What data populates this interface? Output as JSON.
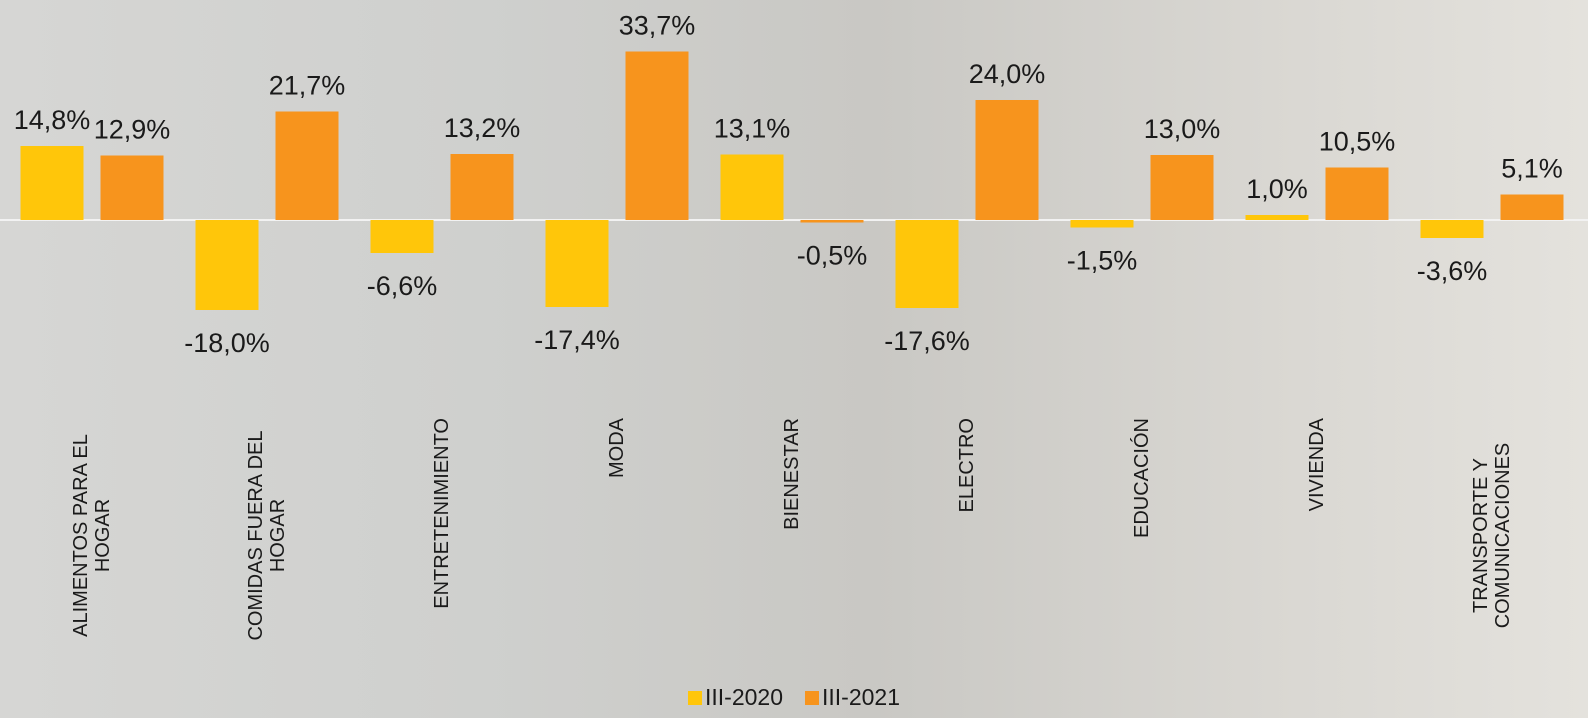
{
  "chart_data": {
    "type": "bar",
    "categories": [
      "ALIMENTOS PARA EL HOGAR",
      "COMIDAS FUERA DEL HOGAR",
      "ENTRETENIMIENTO",
      "MODA",
      "BIENESTAR",
      "ELECTRO",
      "EDUCACIÓN",
      "VIVIENDA",
      "TRANSPORTE Y COMUNICACIONES"
    ],
    "series": [
      {
        "name": "III-2020",
        "color": "#ffc60a",
        "values": [
          14.8,
          -18.0,
          -6.6,
          -17.4,
          13.1,
          -17.6,
          -1.5,
          1.0,
          -3.6
        ],
        "value_labels": [
          "14,8%",
          "-18,0%",
          "-6,6%",
          "-17,4%",
          "13,1%",
          "-17,6%",
          "-1,5%",
          "1,0%",
          "-3,6%"
        ]
      },
      {
        "name": "III-2021",
        "color": "#f7941d",
        "values": [
          12.9,
          21.7,
          13.2,
          33.7,
          -0.5,
          24.0,
          13.0,
          10.5,
          5.1
        ],
        "value_labels": [
          "12,9%",
          "21,7%",
          "13,2%",
          "33,7%",
          "-0,5%",
          "24,0%",
          "13,0%",
          "10,5%",
          "5,1%"
        ]
      }
    ],
    "ylim": [
      -20,
      40
    ]
  }
}
